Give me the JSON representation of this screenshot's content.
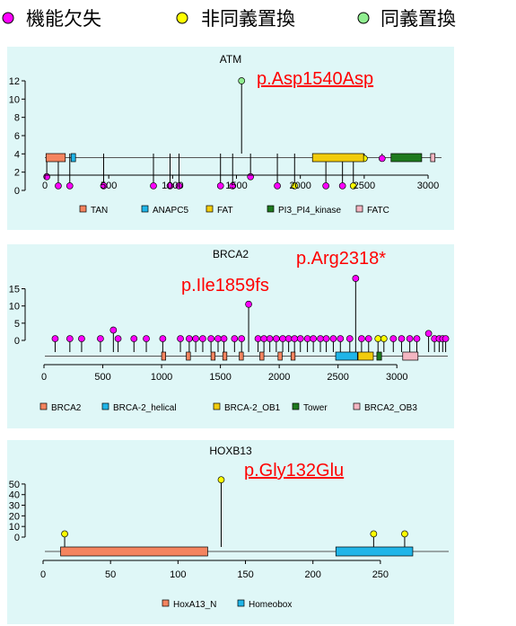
{
  "legend": [
    {
      "label": "機能欠失",
      "color": "#ff00ff"
    },
    {
      "label": "非同義置換",
      "color": "#ffff00"
    },
    {
      "label": "同義置換",
      "color": "#90ee90"
    }
  ],
  "colors": {
    "lof": "#ff00ff",
    "missense": "#ffff00",
    "synonymous": "#90ee90",
    "panel_bg": "#dff7f7",
    "highlight": "#ff0000"
  },
  "chart_data": [
    {
      "type": "lollipop",
      "title": "ATM",
      "highlight": {
        "label": "p.Asp1540Asp",
        "underline": true,
        "at": 1540
      },
      "xlim": [
        0,
        3056
      ],
      "xticks": [
        0,
        500,
        1000,
        1500,
        2000,
        2500,
        3000
      ],
      "ylim": [
        0,
        12
      ],
      "yticks": [
        0,
        2,
        4,
        6,
        8,
        10,
        12
      ],
      "domains": [
        {
          "name": "TAN",
          "start": 9,
          "end": 160,
          "color": "#f4845f"
        },
        {
          "name": "ANAPC5",
          "start": 205,
          "end": 240,
          "color": "#1fb5e8"
        },
        {
          "name": "FAT",
          "start": 2095,
          "end": 2495,
          "color": "#f2cc0c"
        },
        {
          "name": "PI3_PI4_kinase",
          "start": 2710,
          "end": 2950,
          "color": "#1e7a1e"
        },
        {
          "name": "FATC",
          "start": 3020,
          "end": 3054,
          "color": "#f4b6c2"
        }
      ],
      "mutations": [
        {
          "pos": 15,
          "count": 1.5,
          "type": "lof"
        },
        {
          "pos": 105,
          "count": 0.5,
          "type": "lof"
        },
        {
          "pos": 195,
          "count": 0.5,
          "type": "lof"
        },
        {
          "pos": 460,
          "count": 0.5,
          "type": "lof"
        },
        {
          "pos": 850,
          "count": 0.5,
          "type": "lof"
        },
        {
          "pos": 980,
          "count": 0.5,
          "type": "lof"
        },
        {
          "pos": 1050,
          "count": 0.5,
          "type": "lof"
        },
        {
          "pos": 1375,
          "count": 0.5,
          "type": "lof"
        },
        {
          "pos": 1470,
          "count": 0.5,
          "type": "lof"
        },
        {
          "pos": 1540,
          "count": 12,
          "type": "synonymous"
        },
        {
          "pos": 1610,
          "count": 1.5,
          "type": "lof"
        },
        {
          "pos": 1820,
          "count": 0.5,
          "type": "lof"
        },
        {
          "pos": 1955,
          "count": 0.5,
          "type": "missense"
        },
        {
          "pos": 2200,
          "count": 0.5,
          "type": "lof"
        },
        {
          "pos": 2330,
          "count": 0.5,
          "type": "lof"
        },
        {
          "pos": 2415,
          "count": 0.5,
          "type": "missense"
        },
        {
          "pos": 2500,
          "count": 3.5,
          "type": "missense"
        },
        {
          "pos": 2640,
          "count": 3.5,
          "type": "lof"
        }
      ]
    },
    {
      "type": "lollipop",
      "title": "BRCA2",
      "highlight": {
        "label": "p.Arg2318*",
        "underline": false,
        "at": 2318
      },
      "highlight2": {
        "label": "p.Ile1859fs",
        "underline": false,
        "at": 1859
      },
      "xlim": [
        0,
        3418
      ],
      "xticks": [
        0,
        500,
        1000,
        1500,
        2000,
        2500,
        3000
      ],
      "ylim": [
        0,
        18
      ],
      "yticks": [
        0,
        5,
        10,
        15
      ],
      "domains": [
        {
          "name": "BRCA2",
          "start": 1000,
          "end": 1035,
          "color": "#f4845f",
          "legend": true
        },
        {
          "name": "BRCA2",
          "start": 1210,
          "end": 1245,
          "color": "#f4845f",
          "legend": false
        },
        {
          "name": "BRCA2",
          "start": 1420,
          "end": 1455,
          "color": "#f4845f",
          "legend": false
        },
        {
          "name": "BRCA2",
          "start": 1520,
          "end": 1555,
          "color": "#f4845f",
          "legend": false
        },
        {
          "name": "BRCA2",
          "start": 1660,
          "end": 1695,
          "color": "#f4845f",
          "legend": false
        },
        {
          "name": "BRCA2",
          "start": 1835,
          "end": 1870,
          "color": "#f4845f",
          "legend": false
        },
        {
          "name": "BRCA2",
          "start": 1990,
          "end": 2025,
          "color": "#f4845f",
          "legend": false
        },
        {
          "name": "BRCA2",
          "start": 2100,
          "end": 2135,
          "color": "#f4845f",
          "legend": false
        },
        {
          "name": "BRCA-2_helical",
          "start": 2480,
          "end": 2665,
          "color": "#1fb5e8",
          "legend": true
        },
        {
          "name": "BRCA-2_OB1",
          "start": 2670,
          "end": 2800,
          "color": "#f2cc0c",
          "legend": true
        },
        {
          "name": "Tower",
          "start": 2830,
          "end": 2870,
          "color": "#1e7a1e",
          "legend": true
        },
        {
          "name": "BRCA2_OB3",
          "start": 3050,
          "end": 3180,
          "color": "#f4b6c2",
          "legend": true
        }
      ],
      "mutations": [
        {
          "pos": 95,
          "count": 0.5,
          "type": "lof"
        },
        {
          "pos": 220,
          "count": 0.5,
          "type": "lof"
        },
        {
          "pos": 320,
          "count": 0.5,
          "type": "lof"
        },
        {
          "pos": 480,
          "count": 0.5,
          "type": "lof"
        },
        {
          "pos": 590,
          "count": 3,
          "type": "lof"
        },
        {
          "pos": 630,
          "count": 0.5,
          "type": "lof"
        },
        {
          "pos": 765,
          "count": 0.5,
          "type": "lof"
        },
        {
          "pos": 870,
          "count": 0.5,
          "type": "lof"
        },
        {
          "pos": 1010,
          "count": 0.5,
          "type": "lof"
        },
        {
          "pos": 1160,
          "count": 0.5,
          "type": "lof"
        },
        {
          "pos": 1235,
          "count": 0.5,
          "type": "lof"
        },
        {
          "pos": 1290,
          "count": 0.5,
          "type": "lof"
        },
        {
          "pos": 1350,
          "count": 0.5,
          "type": "lof"
        },
        {
          "pos": 1420,
          "count": 0.5,
          "type": "lof"
        },
        {
          "pos": 1480,
          "count": 0.5,
          "type": "lof"
        },
        {
          "pos": 1530,
          "count": 0.5,
          "type": "lof"
        },
        {
          "pos": 1620,
          "count": 0.5,
          "type": "lof"
        },
        {
          "pos": 1680,
          "count": 0.5,
          "type": "lof"
        },
        {
          "pos": 1740,
          "count": 10.5,
          "type": "lof"
        },
        {
          "pos": 1820,
          "count": 0.5,
          "type": "lof"
        },
        {
          "pos": 1870,
          "count": 0.5,
          "type": "lof"
        },
        {
          "pos": 1920,
          "count": 0.5,
          "type": "lof"
        },
        {
          "pos": 1975,
          "count": 0.5,
          "type": "lof"
        },
        {
          "pos": 2030,
          "count": 0.5,
          "type": "lof"
        },
        {
          "pos": 2080,
          "count": 0.5,
          "type": "lof"
        },
        {
          "pos": 2130,
          "count": 0.5,
          "type": "lof"
        },
        {
          "pos": 2180,
          "count": 0.5,
          "type": "lof"
        },
        {
          "pos": 2240,
          "count": 0.5,
          "type": "lof"
        },
        {
          "pos": 2290,
          "count": 0.5,
          "type": "lof"
        },
        {
          "pos": 2350,
          "count": 0.5,
          "type": "lof"
        },
        {
          "pos": 2400,
          "count": 0.5,
          "type": "lof"
        },
        {
          "pos": 2460,
          "count": 0.5,
          "type": "lof"
        },
        {
          "pos": 2520,
          "count": 0.5,
          "type": "lof"
        },
        {
          "pos": 2600,
          "count": 0.5,
          "type": "lof"
        },
        {
          "pos": 2650,
          "count": 18,
          "type": "lof"
        },
        {
          "pos": 2700,
          "count": 0.5,
          "type": "lof"
        },
        {
          "pos": 2760,
          "count": 0.5,
          "type": "lof"
        },
        {
          "pos": 2840,
          "count": 0.5,
          "type": "missense"
        },
        {
          "pos": 2890,
          "count": 0.5,
          "type": "missense"
        },
        {
          "pos": 2970,
          "count": 0.5,
          "type": "lof"
        },
        {
          "pos": 3040,
          "count": 0.5,
          "type": "lof"
        },
        {
          "pos": 3110,
          "count": 0.5,
          "type": "lof"
        },
        {
          "pos": 3170,
          "count": 0.5,
          "type": "lof"
        },
        {
          "pos": 3270,
          "count": 2,
          "type": "lof"
        },
        {
          "pos": 3320,
          "count": 0.5,
          "type": "lof"
        },
        {
          "pos": 3360,
          "count": 0.5,
          "type": "lof"
        },
        {
          "pos": 3390,
          "count": 0.5,
          "type": "lof"
        },
        {
          "pos": 3415,
          "count": 0.5,
          "type": "lof"
        }
      ]
    },
    {
      "type": "lollipop",
      "title": "HOXB13",
      "highlight": {
        "label": "p.Gly132Glu",
        "underline": true,
        "at": 132
      },
      "xlim": [
        0,
        284
      ],
      "xticks": [
        0,
        50,
        100,
        150,
        200,
        250
      ],
      "ylim": [
        0,
        55
      ],
      "yticks": [
        0,
        10,
        20,
        30,
        40,
        50
      ],
      "domains": [
        {
          "name": "HoxA13_N",
          "start": 13,
          "end": 122,
          "color": "#f4845f"
        },
        {
          "name": "Homeobox",
          "start": 217,
          "end": 274,
          "color": "#1fb5e8"
        }
      ],
      "mutations": [
        {
          "pos": 16,
          "count": 3,
          "type": "missense"
        },
        {
          "pos": 132,
          "count": 54,
          "type": "missense"
        },
        {
          "pos": 245,
          "count": 3,
          "type": "missense"
        },
        {
          "pos": 268,
          "count": 3,
          "type": "missense"
        }
      ]
    }
  ]
}
